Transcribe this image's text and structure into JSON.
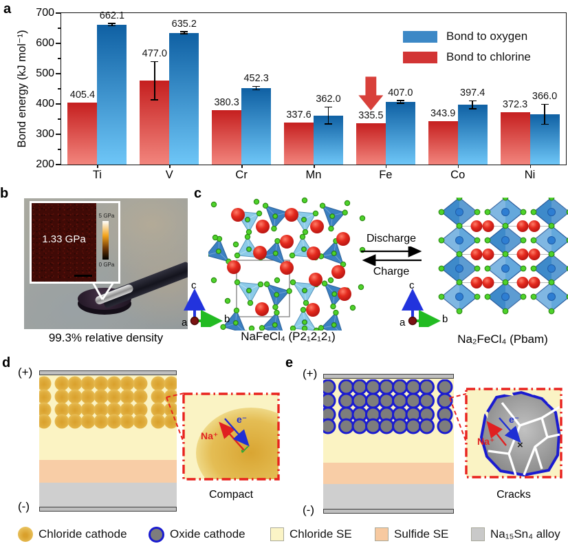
{
  "figure_labels": {
    "a": "a",
    "b": "b",
    "c": "c",
    "d": "d",
    "e": "e"
  },
  "chart_data": {
    "type": "bar",
    "categories": [
      "Ti",
      "V",
      "Cr",
      "Mn",
      "Fe",
      "Co",
      "Ni"
    ],
    "series": [
      {
        "name": "Bond to chlorine",
        "color_top": "#c51f1f",
        "color_bottom": "#f2857d",
        "legend_color": "#d23434",
        "values": [
          405.4,
          477.0,
          380.3,
          337.6,
          335.5,
          343.9,
          372.3
        ],
        "errors": [
          null,
          63,
          null,
          null,
          null,
          null,
          null
        ]
      },
      {
        "name": "Bond to oxygen",
        "color_top": "#0f60a3",
        "color_bottom": "#6ec6f7",
        "legend_color": "#3c88c6",
        "values": [
          662.1,
          635.2,
          452.3,
          362.0,
          407.0,
          397.4,
          366.0
        ],
        "errors": [
          4,
          4,
          6,
          28,
          5,
          13,
          33
        ]
      }
    ],
    "legend_order": [
      "Bond to oxygen",
      "Bond to chlorine"
    ],
    "ylabel": "Bond energy (kJ mol⁻¹)",
    "ylim": [
      200,
      700
    ],
    "yticks": [
      200,
      300,
      400,
      500,
      600,
      700
    ],
    "ytick_minor_step": 50,
    "annotation": {
      "symbol": "down-arrow",
      "category": "Fe",
      "series": "Bond to chlorine",
      "color": "#d8403a"
    }
  },
  "panel_b": {
    "inset_value": "1.33 GPa",
    "scale_top": "5 GPa",
    "scale_bottom": "0 GPa",
    "caption": "99.3% relative density"
  },
  "panel_c": {
    "left_caption": "NaFeCl₄ (P2₁2₁2₁)",
    "right_caption": "Na₂FeCl₄ (Pbam)",
    "forward": "Discharge",
    "backward": "Charge",
    "axes": {
      "up": "c",
      "right": "b",
      "out": "a"
    }
  },
  "panel_d": {
    "top_electrode": "(+)",
    "bottom_electrode": "(-)",
    "ion": "Na⁺",
    "electron": "e⁻",
    "mark": "✓",
    "caption": "Compact"
  },
  "panel_e": {
    "top_electrode": "(+)",
    "bottom_electrode": "(-)",
    "ion": "Na⁺",
    "electron": "e⁻",
    "mark": "×",
    "caption": "Cracks"
  },
  "bottom_legend": {
    "items": [
      {
        "label": "Chloride cathode",
        "swatch": "yellow-circle",
        "color": "#e3b049"
      },
      {
        "label": "Oxide cathode",
        "swatch": "gray-circle-blue-ring",
        "color": "#7d7d7d",
        "ring": "#1a1bd0"
      },
      {
        "label": "Chloride SE",
        "swatch": "square",
        "color": "#fbf4c6"
      },
      {
        "label": "Sulfide SE",
        "swatch": "square",
        "color": "#f7c9a0"
      },
      {
        "label": "Na₁₅Sn₄ alloy",
        "swatch": "square",
        "color": "#c9c9c9"
      }
    ]
  }
}
